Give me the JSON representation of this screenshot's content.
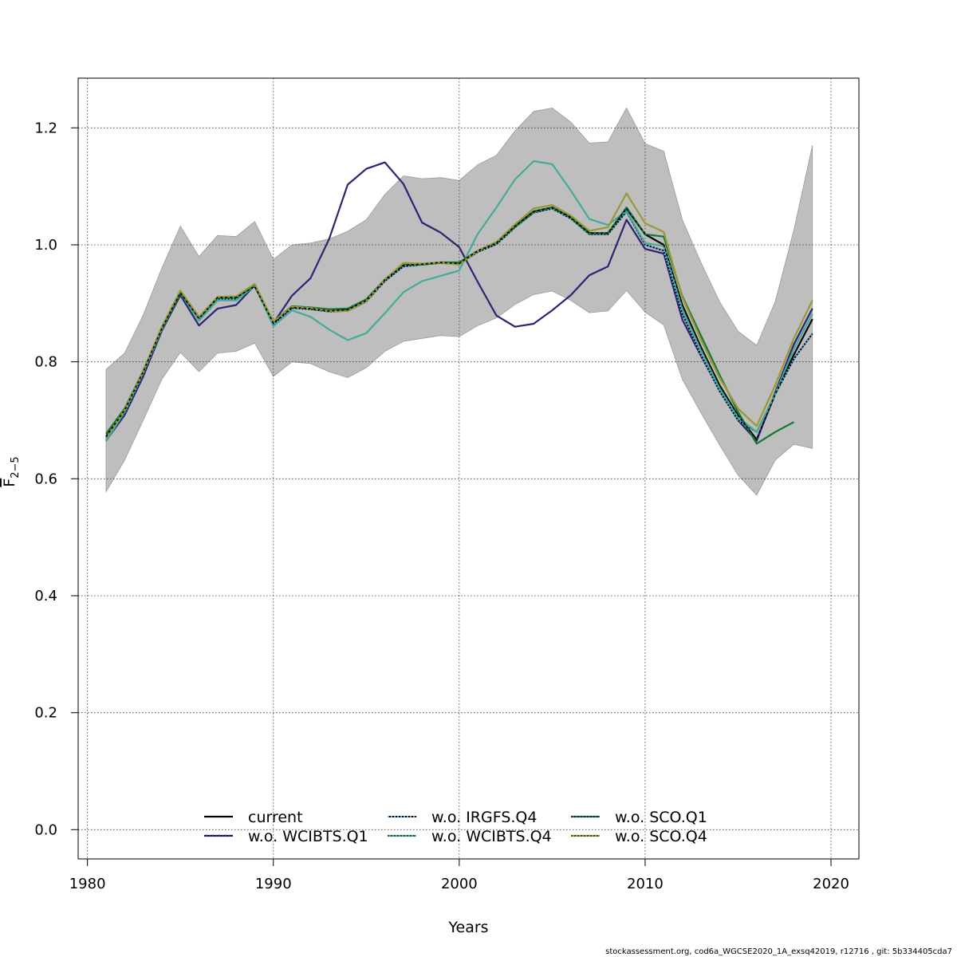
{
  "chart_data": {
    "type": "line",
    "xlabel": "Years",
    "ylabel_main": "F",
    "ylabel_sub": "2−5",
    "xlim": [
      1979.5,
      2021.5
    ],
    "ylim": [
      -0.05,
      1.285
    ],
    "x_ticks": [
      1980,
      1990,
      2000,
      2010,
      2020
    ],
    "y_ticks": [
      0.0,
      0.2,
      0.4,
      0.6,
      0.8,
      1.0,
      1.2
    ],
    "y_tick_labels": [
      "0.0",
      "0.2",
      "0.4",
      "0.6",
      "0.8",
      "1.0",
      "1.2"
    ],
    "grid": true,
    "legend_placement": "bottom",
    "band": {
      "color": "#bebebe",
      "x": [
        1981,
        1982,
        1983,
        1984,
        1985,
        1986,
        1987,
        1988,
        1989,
        1990,
        1991,
        1992,
        1993,
        1994,
        1995,
        1996,
        1997,
        1998,
        1999,
        2000,
        2001,
        2002,
        2003,
        2004,
        2005,
        2006,
        2007,
        2008,
        2009,
        2010,
        2011,
        2012,
        2013,
        2014,
        2015,
        2016,
        2017,
        2018,
        2019
      ],
      "upper": [
        0.787,
        0.815,
        0.88,
        0.96,
        1.032,
        0.98,
        1.016,
        1.014,
        1.04,
        0.975,
        1.0,
        1.003,
        1.01,
        1.023,
        1.043,
        1.086,
        1.118,
        1.113,
        1.115,
        1.11,
        1.137,
        1.153,
        1.195,
        1.228,
        1.234,
        1.21,
        1.174,
        1.176,
        1.234,
        1.173,
        1.16,
        1.043,
        0.97,
        0.903,
        0.852,
        0.828,
        0.903,
        1.025,
        1.17
      ],
      "lower": [
        0.578,
        0.632,
        0.7,
        0.77,
        0.816,
        0.783,
        0.815,
        0.818,
        0.832,
        0.775,
        0.8,
        0.797,
        0.783,
        0.773,
        0.79,
        0.818,
        0.835,
        0.84,
        0.845,
        0.843,
        0.862,
        0.875,
        0.898,
        0.915,
        0.921,
        0.905,
        0.884,
        0.887,
        0.922,
        0.885,
        0.863,
        0.77,
        0.713,
        0.658,
        0.606,
        0.572,
        0.632,
        0.659,
        0.652
      ]
    },
    "series": [
      {
        "name": "current",
        "color": "#000000",
        "dash": "solid",
        "x": [
          1981,
          1982,
          1983,
          1984,
          1985,
          1986,
          1987,
          1988,
          1989,
          1990,
          1991,
          1992,
          1993,
          1994,
          1995,
          1996,
          1997,
          1998,
          1999,
          2000,
          2001,
          2002,
          2003,
          2004,
          2005,
          2006,
          2007,
          2008,
          2009,
          2010,
          2011,
          2012,
          2013,
          2014,
          2015,
          2016,
          2017,
          2018,
          2019
        ],
        "values": [
          0.672,
          0.717,
          0.783,
          0.857,
          0.918,
          0.874,
          0.91,
          0.91,
          0.929,
          0.866,
          0.893,
          0.891,
          0.887,
          0.889,
          0.905,
          0.94,
          0.965,
          0.967,
          0.97,
          0.968,
          0.99,
          1.003,
          1.032,
          1.057,
          1.064,
          1.047,
          1.02,
          1.02,
          1.062,
          1.018,
          1.0,
          0.897,
          0.825,
          0.76,
          0.708,
          0.667,
          0.745,
          0.812,
          0.873
        ]
      },
      {
        "name": "w.o. WCIBTS.Q1",
        "color": "#2f2275",
        "dash": "solid",
        "x": [
          1981,
          1982,
          1983,
          1984,
          1985,
          1986,
          1987,
          1988,
          1989,
          1990,
          1991,
          1992,
          1993,
          1994,
          1995,
          1996,
          1997,
          1998,
          1999,
          2000,
          2001,
          2002,
          2003,
          2004,
          2005,
          2006,
          2007,
          2008,
          2009,
          2010,
          2011,
          2012,
          2013,
          2014,
          2015,
          2016,
          2017,
          2018,
          2019
        ],
        "values": [
          0.665,
          0.709,
          0.775,
          0.853,
          0.914,
          0.862,
          0.891,
          0.897,
          0.931,
          0.866,
          0.913,
          0.943,
          1.01,
          1.103,
          1.13,
          1.141,
          1.104,
          1.038,
          1.021,
          0.996,
          0.936,
          0.879,
          0.86,
          0.865,
          0.888,
          0.914,
          0.948,
          0.963,
          1.043,
          0.993,
          0.985,
          0.872,
          0.81,
          0.752,
          0.7,
          0.665,
          0.748,
          0.83,
          0.891
        ]
      },
      {
        "name": "w.o. IRGFS.Q4",
        "color": "#56b4e9",
        "dash": "dotted",
        "x": [
          1981,
          1982,
          1983,
          1984,
          1985,
          1986,
          1987,
          1988,
          1989,
          1990,
          1991,
          1992,
          1993,
          1994,
          1995,
          1996,
          1997,
          1998,
          1999,
          2000,
          2001,
          2002,
          2003,
          2004,
          2005,
          2006,
          2007,
          2008,
          2009,
          2010,
          2011,
          2012,
          2013,
          2014,
          2015,
          2016,
          2017,
          2018,
          2019
        ],
        "values": [
          0.668,
          0.713,
          0.78,
          0.855,
          0.917,
          0.872,
          0.908,
          0.908,
          0.93,
          0.864,
          0.892,
          0.89,
          0.886,
          0.887,
          0.903,
          0.938,
          0.963,
          0.966,
          0.969,
          0.967,
          0.988,
          1.001,
          1.03,
          1.055,
          1.062,
          1.045,
          1.018,
          1.018,
          1.057,
          1.0,
          0.99,
          0.882,
          0.812,
          0.75,
          0.7,
          0.68,
          0.745,
          0.805,
          0.848
        ]
      },
      {
        "name": "w.o. WCIBTS.Q4",
        "color": "#44aa99",
        "dash": "solid",
        "x": [
          1981,
          1982,
          1983,
          1984,
          1985,
          1986,
          1987,
          1988,
          1989,
          1990,
          1991,
          1992,
          1993,
          1994,
          1995,
          1996,
          1997,
          1998,
          1999,
          2000,
          2001,
          2002,
          2003,
          2004,
          2005,
          2006,
          2007,
          2008,
          2009,
          2010,
          2011,
          2012,
          2013,
          2014,
          2015,
          2016,
          2017,
          2018,
          2019
        ],
        "values": [
          0.664,
          0.715,
          0.782,
          0.856,
          0.918,
          0.87,
          0.905,
          0.905,
          0.93,
          0.861,
          0.888,
          0.877,
          0.855,
          0.837,
          0.849,
          0.883,
          0.919,
          0.938,
          0.947,
          0.956,
          1.019,
          1.064,
          1.112,
          1.143,
          1.138,
          1.093,
          1.044,
          1.034,
          1.058,
          1.003,
          0.998,
          0.89,
          0.82,
          0.755,
          0.705,
          0.68,
          0.745,
          0.822,
          0.882
        ]
      },
      {
        "name": "w.o. SCO.Q1",
        "color": "#117733",
        "dash": "solid",
        "x": [
          1981,
          1982,
          1983,
          1984,
          1985,
          1986,
          1987,
          1988,
          1989,
          1990,
          1991,
          1992,
          1993,
          1994,
          1995,
          1996,
          1997,
          1998,
          1999,
          2000,
          2001,
          2002,
          2003,
          2004,
          2005,
          2006,
          2007,
          2008,
          2009,
          2010,
          2011,
          2012,
          2013,
          2014,
          2015,
          2016,
          2017,
          2018
        ],
        "values": [
          0.677,
          0.72,
          0.785,
          0.858,
          0.918,
          0.876,
          0.91,
          0.91,
          0.931,
          0.869,
          0.895,
          0.893,
          0.89,
          0.891,
          0.907,
          0.941,
          0.966,
          0.966,
          0.97,
          0.97,
          0.99,
          1.004,
          1.031,
          1.056,
          1.064,
          1.047,
          1.019,
          1.02,
          1.064,
          1.018,
          1.014,
          0.912,
          0.845,
          0.778,
          0.714,
          0.66,
          0.68,
          0.697
        ]
      },
      {
        "name": "w.o. SCO.Q4",
        "color": "#999933",
        "dash": "solid",
        "x": [
          1981,
          1982,
          1983,
          1984,
          1985,
          1986,
          1987,
          1988,
          1989,
          1990,
          1991,
          1992,
          1993,
          1994,
          1995,
          1996,
          1997,
          1998,
          1999,
          2000,
          2001,
          2002,
          2003,
          2004,
          2005,
          2006,
          2007,
          2008,
          2009,
          2010,
          2011,
          2012,
          2013,
          2014,
          2015,
          2016,
          2017,
          2018,
          2019
        ],
        "values": [
          0.67,
          0.718,
          0.785,
          0.86,
          0.922,
          0.877,
          0.911,
          0.912,
          0.933,
          0.869,
          0.894,
          0.892,
          0.887,
          0.887,
          0.904,
          0.941,
          0.969,
          0.968,
          0.97,
          0.966,
          0.99,
          1.005,
          1.035,
          1.062,
          1.068,
          1.05,
          1.024,
          1.03,
          1.088,
          1.037,
          1.022,
          0.91,
          0.838,
          0.773,
          0.72,
          0.69,
          0.76,
          0.84,
          0.905
        ]
      }
    ],
    "footer": "stockassessment.org, cod6a_WGCSE2020_1A_exsq42019, r12716 , git: 5b334405cda7"
  }
}
